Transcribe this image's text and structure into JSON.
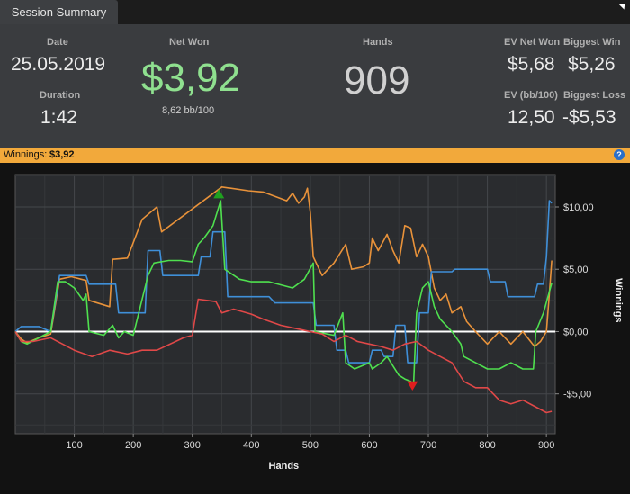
{
  "tab": {
    "label": "Session Summary"
  },
  "summary": {
    "date_label": "Date",
    "date_value": "25.05.2019",
    "duration_label": "Duration",
    "duration_value": "1:42",
    "net_won_label": "Net Won",
    "net_won_value": "$3,92",
    "net_won_sub": "8,62 bb/100",
    "hands_label": "Hands",
    "hands_value": "909",
    "ev_net_won_label": "EV Net Won",
    "ev_net_won_value": "$5,68",
    "biggest_win_label": "Biggest Win",
    "biggest_win_value": "$5,26",
    "ev_bb_label": "EV (bb/100)",
    "ev_bb_value": "12,50",
    "biggest_loss_label": "Biggest Loss",
    "biggest_loss_value": "-$5,53",
    "net_won_color": "#8fe08f"
  },
  "winnings_bar": {
    "label": "Winnings:",
    "value": "$3,92",
    "help_icon": "help-icon"
  },
  "chart_data": {
    "type": "line",
    "xlabel": "Hands",
    "ylabel": "Winnings",
    "xlim": [
      0,
      915
    ],
    "ylim": [
      -8.2,
      12.6
    ],
    "xticks": [
      100,
      200,
      300,
      400,
      500,
      600,
      700,
      800,
      900
    ],
    "yticks": [
      10,
      5,
      0,
      -5
    ],
    "ytick_labels": [
      "$10,00",
      "$5,00",
      "$0,00",
      "-$5,00"
    ],
    "grid": true,
    "series": [
      {
        "color": "#e8923a",
        "points": [
          [
            0,
            0
          ],
          [
            10,
            -0.6
          ],
          [
            20,
            -0.9
          ],
          [
            40,
            -0.5
          ],
          [
            60,
            -0.2
          ],
          [
            75,
            4.2
          ],
          [
            95,
            4.4
          ],
          [
            120,
            4.1
          ],
          [
            125,
            2.5
          ],
          [
            160,
            2.0
          ],
          [
            165,
            5.8
          ],
          [
            190,
            5.9
          ],
          [
            215,
            9.0
          ],
          [
            230,
            9.6
          ],
          [
            240,
            10.0
          ],
          [
            248,
            8.0
          ],
          [
            350,
            11.6
          ],
          [
            395,
            11.3
          ],
          [
            420,
            11.2
          ],
          [
            460,
            10.5
          ],
          [
            470,
            11.1
          ],
          [
            480,
            10.3
          ],
          [
            490,
            10.8
          ],
          [
            495,
            11.5
          ],
          [
            500,
            9.5
          ],
          [
            505,
            6.0
          ],
          [
            520,
            4.5
          ],
          [
            540,
            5.5
          ],
          [
            560,
            7.0
          ],
          [
            570,
            5.0
          ],
          [
            590,
            5.2
          ],
          [
            600,
            5.5
          ],
          [
            605,
            7.5
          ],
          [
            615,
            6.5
          ],
          [
            630,
            7.8
          ],
          [
            640,
            6.5
          ],
          [
            650,
            5.5
          ],
          [
            660,
            8.5
          ],
          [
            670,
            8.3
          ],
          [
            680,
            6.0
          ],
          [
            690,
            7.0
          ],
          [
            700,
            6.0
          ],
          [
            710,
            3.5
          ],
          [
            720,
            2.5
          ],
          [
            730,
            3.0
          ],
          [
            740,
            1.5
          ],
          [
            755,
            2.0
          ],
          [
            765,
            0.8
          ],
          [
            780,
            0.0
          ],
          [
            800,
            -1.0
          ],
          [
            820,
            0.0
          ],
          [
            840,
            -1.0
          ],
          [
            860,
            0.0
          ],
          [
            880,
            -1.2
          ],
          [
            890,
            -0.8
          ],
          [
            900,
            0.0
          ],
          [
            905,
            3.0
          ],
          [
            909,
            5.7
          ]
        ]
      },
      {
        "color": "#3f8fd8",
        "points": [
          [
            0,
            0
          ],
          [
            10,
            0.4
          ],
          [
            40,
            0.4
          ],
          [
            60,
            0.0
          ],
          [
            75,
            4.5
          ],
          [
            120,
            4.5
          ],
          [
            125,
            3.8
          ],
          [
            170,
            3.8
          ],
          [
            175,
            1.5
          ],
          [
            220,
            1.5
          ],
          [
            225,
            6.5
          ],
          [
            245,
            6.5
          ],
          [
            250,
            4.5
          ],
          [
            310,
            4.5
          ],
          [
            315,
            6.0
          ],
          [
            330,
            6.0
          ],
          [
            335,
            8.0
          ],
          [
            355,
            8.0
          ],
          [
            360,
            2.8
          ],
          [
            430,
            2.8
          ],
          [
            440,
            2.3
          ],
          [
            505,
            2.3
          ],
          [
            510,
            0.5
          ],
          [
            540,
            0.5
          ],
          [
            545,
            -1.5
          ],
          [
            560,
            -1.5
          ],
          [
            565,
            -2.5
          ],
          [
            600,
            -2.5
          ],
          [
            605,
            -1.5
          ],
          [
            620,
            -1.5
          ],
          [
            625,
            -2.0
          ],
          [
            640,
            -2.0
          ],
          [
            645,
            0.5
          ],
          [
            660,
            0.5
          ],
          [
            665,
            -2.5
          ],
          [
            680,
            -2.5
          ],
          [
            685,
            1.5
          ],
          [
            700,
            1.5
          ],
          [
            705,
            4.8
          ],
          [
            740,
            4.8
          ],
          [
            745,
            5.0
          ],
          [
            800,
            5.0
          ],
          [
            805,
            4.0
          ],
          [
            830,
            4.0
          ],
          [
            835,
            2.8
          ],
          [
            880,
            2.8
          ],
          [
            885,
            3.8
          ],
          [
            895,
            3.8
          ],
          [
            900,
            6.0
          ],
          [
            905,
            10.5
          ],
          [
            909,
            10.3
          ]
        ]
      },
      {
        "color": "#4fe04f",
        "points": [
          [
            0,
            0
          ],
          [
            10,
            -0.8
          ],
          [
            20,
            -1.0
          ],
          [
            40,
            -0.5
          ],
          [
            60,
            0.0
          ],
          [
            72,
            4.0
          ],
          [
            85,
            4.0
          ],
          [
            100,
            3.5
          ],
          [
            115,
            2.5
          ],
          [
            120,
            3.0
          ],
          [
            125,
            0.0
          ],
          [
            150,
            -0.3
          ],
          [
            165,
            0.5
          ],
          [
            175,
            -0.5
          ],
          [
            185,
            0.0
          ],
          [
            200,
            -0.3
          ],
          [
            225,
            4.5
          ],
          [
            235,
            5.5
          ],
          [
            260,
            5.7
          ],
          [
            280,
            5.7
          ],
          [
            300,
            5.6
          ],
          [
            310,
            7.0
          ],
          [
            320,
            7.5
          ],
          [
            335,
            8.5
          ],
          [
            348,
            10.5
          ],
          [
            355,
            5.0
          ],
          [
            380,
            4.2
          ],
          [
            400,
            4.0
          ],
          [
            430,
            4.0
          ],
          [
            470,
            3.5
          ],
          [
            490,
            4.2
          ],
          [
            505,
            5.5
          ],
          [
            508,
            0.0
          ],
          [
            540,
            -0.3
          ],
          [
            555,
            1.5
          ],
          [
            560,
            -2.5
          ],
          [
            575,
            -3.0
          ],
          [
            600,
            -2.5
          ],
          [
            605,
            -3.0
          ],
          [
            620,
            -2.5
          ],
          [
            630,
            -2.0
          ],
          [
            650,
            -3.5
          ],
          [
            660,
            -3.8
          ],
          [
            670,
            -4.0
          ],
          [
            675,
            -4.2
          ],
          [
            680,
            1.5
          ],
          [
            690,
            3.5
          ],
          [
            700,
            4.0
          ],
          [
            710,
            2.0
          ],
          [
            720,
            1.0
          ],
          [
            740,
            0.0
          ],
          [
            755,
            -1.0
          ],
          [
            760,
            -2.0
          ],
          [
            780,
            -2.5
          ],
          [
            800,
            -3.0
          ],
          [
            820,
            -3.0
          ],
          [
            840,
            -2.5
          ],
          [
            860,
            -3.0
          ],
          [
            878,
            -3.0
          ],
          [
            882,
            0.0
          ],
          [
            895,
            1.5
          ],
          [
            909,
            3.9
          ]
        ]
      },
      {
        "color": "#e04848",
        "points": [
          [
            0,
            0
          ],
          [
            10,
            -0.8
          ],
          [
            30,
            -0.8
          ],
          [
            60,
            -0.5
          ],
          [
            80,
            -1.0
          ],
          [
            100,
            -1.5
          ],
          [
            130,
            -2.0
          ],
          [
            160,
            -1.5
          ],
          [
            190,
            -1.8
          ],
          [
            215,
            -1.5
          ],
          [
            240,
            -1.5
          ],
          [
            285,
            -0.5
          ],
          [
            300,
            -0.3
          ],
          [
            310,
            2.6
          ],
          [
            340,
            2.4
          ],
          [
            350,
            1.5
          ],
          [
            370,
            1.8
          ],
          [
            400,
            1.4
          ],
          [
            420,
            1.0
          ],
          [
            450,
            0.5
          ],
          [
            480,
            0.2
          ],
          [
            500,
            0.0
          ],
          [
            520,
            -0.2
          ],
          [
            540,
            -0.8
          ],
          [
            560,
            -0.3
          ],
          [
            580,
            -0.8
          ],
          [
            600,
            -1.0
          ],
          [
            620,
            -1.2
          ],
          [
            640,
            -1.5
          ],
          [
            660,
            -1.0
          ],
          [
            680,
            -0.8
          ],
          [
            700,
            -1.5
          ],
          [
            720,
            -2.0
          ],
          [
            740,
            -2.5
          ],
          [
            760,
            -4.0
          ],
          [
            780,
            -4.5
          ],
          [
            800,
            -4.5
          ],
          [
            820,
            -5.5
          ],
          [
            840,
            -5.8
          ],
          [
            860,
            -5.5
          ],
          [
            880,
            -6.0
          ],
          [
            900,
            -6.5
          ],
          [
            909,
            -6.4
          ]
        ]
      }
    ],
    "markers": [
      {
        "shape": "triangle-up",
        "color": "#1fa11f",
        "x": 345,
        "y": 11.0
      },
      {
        "shape": "triangle-down",
        "color": "#e01e1e",
        "x": 673,
        "y": -4.3
      }
    ]
  }
}
